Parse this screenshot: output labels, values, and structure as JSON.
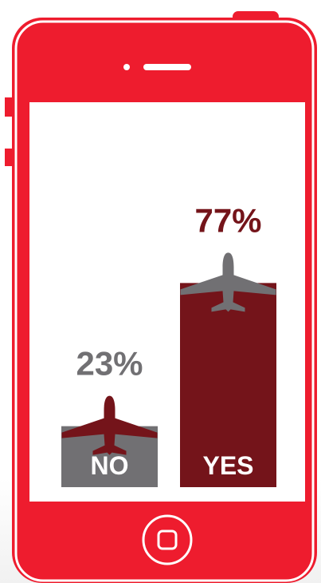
{
  "colors": {
    "phone_body": "#ee1c2e",
    "phone_outline": "#ffffff",
    "screen": "#ffffff",
    "no_bar": "#717073",
    "yes_bar": "#74141a",
    "label_on_bar": "#ffffff"
  },
  "icons": {
    "bar_cap": "airplane-icon",
    "speaker": "speaker-slot-icon",
    "home": "home-button-icon"
  },
  "chart_data": {
    "type": "bar",
    "categories": [
      "NO",
      "YES"
    ],
    "values": [
      23,
      77
    ],
    "value_labels": [
      "23%",
      "77%"
    ],
    "ylim": [
      0,
      100
    ],
    "title": "",
    "xlabel": "",
    "ylabel": "",
    "grid": false,
    "legend": "none"
  }
}
